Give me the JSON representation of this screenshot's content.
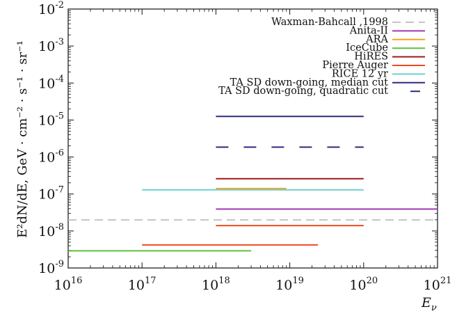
{
  "chart_data": {
    "type": "line",
    "title": "",
    "xlabel_base": "E",
    "xlabel_sub": "ν",
    "ylabel_text": "E²dN/dE, GeV · cm⁻² · s⁻¹ · sr⁻¹",
    "x_scale": "log",
    "y_scale": "log",
    "xlim": [
      1e+16,
      1e+21
    ],
    "ylim": [
      1e-09,
      0.01
    ],
    "grid": false,
    "legend_position": "top-right",
    "x_ticks": [
      {
        "base": "10",
        "exp": "16",
        "value": 1e+16
      },
      {
        "base": "10",
        "exp": "17",
        "value": 1e+17
      },
      {
        "base": "10",
        "exp": "18",
        "value": 1e+18
      },
      {
        "base": "10",
        "exp": "19",
        "value": 1e+19
      },
      {
        "base": "10",
        "exp": "20",
        "value": 1e+20
      },
      {
        "base": "10",
        "exp": "21",
        "value": 1e+21
      }
    ],
    "y_ticks": [
      {
        "base": "10",
        "exp": "-9",
        "value": 1e-09
      },
      {
        "base": "10",
        "exp": "-8",
        "value": 1e-08
      },
      {
        "base": "10",
        "exp": "-7",
        "value": 1e-07
      },
      {
        "base": "10",
        "exp": "-6",
        "value": 1e-06
      },
      {
        "base": "10",
        "exp": "-5",
        "value": 1e-05
      },
      {
        "base": "10",
        "exp": "-4",
        "value": 0.0001
      },
      {
        "base": "10",
        "exp": "-3",
        "value": 0.001
      },
      {
        "base": "10",
        "exp": "-2",
        "value": 0.01
      }
    ],
    "series": [
      {
        "name": "Waxman-Bahcall ,1998",
        "color": "#c4c4c4",
        "dashed": true,
        "x": [
          1e+16,
          1e+21
        ],
        "y": [
          2e-08,
          2e-08
        ]
      },
      {
        "name": "Anita-II",
        "color": "#a23ab2",
        "dashed": false,
        "x": [
          1e+18,
          1e+21
        ],
        "y": [
          3.9e-08,
          3.9e-08
        ]
      },
      {
        "name": "ARA",
        "color": "#f5a31a",
        "dashed": false,
        "x": [
          1e+18,
          9e+18
        ],
        "y": [
          1.4e-07,
          1.4e-07
        ]
      },
      {
        "name": "IceCube",
        "color": "#5fbf3f",
        "dashed": false,
        "x": [
          1e+16,
          3e+18
        ],
        "y": [
          2.9e-09,
          2.9e-09
        ]
      },
      {
        "name": "HiRES",
        "color": "#9b1b1b",
        "dashed": false,
        "x": [
          1e+18,
          1e+20
        ],
        "y": [
          2.6e-07,
          2.6e-07
        ]
      },
      {
        "name": "Pierre Auger",
        "color": "#ee4b1f",
        "dashed": false,
        "x": [
          1e+17,
          2.4e+19
        ],
        "y": [
          4.2e-09,
          4.2e-09
        ]
      },
      {
        "name": "Pierre Auger",
        "color": "#ee4b1f",
        "dashed": false,
        "x": [
          1e+18,
          1e+20
        ],
        "y": [
          1.4e-08,
          1.4e-08
        ],
        "legend": false
      },
      {
        "name": "RICE 12 yr",
        "color": "#6fcfcf",
        "dashed": false,
        "x": [
          1e+17,
          1e+20
        ],
        "y": [
          1.3e-07,
          1.3e-07
        ]
      },
      {
        "name": "TA SD down-going, median cut",
        "color": "#2e2a7e",
        "dashed": false,
        "x": [
          1e+18,
          1e+20
        ],
        "y": [
          1.25e-05,
          1.25e-05
        ]
      },
      {
        "name": "TA SD down-going, quadratic cut",
        "color": "#2e2a7e",
        "dashed": true,
        "x": [
          1e+18,
          1e+20
        ],
        "y": [
          1.85e-06,
          1.85e-06
        ]
      }
    ]
  }
}
